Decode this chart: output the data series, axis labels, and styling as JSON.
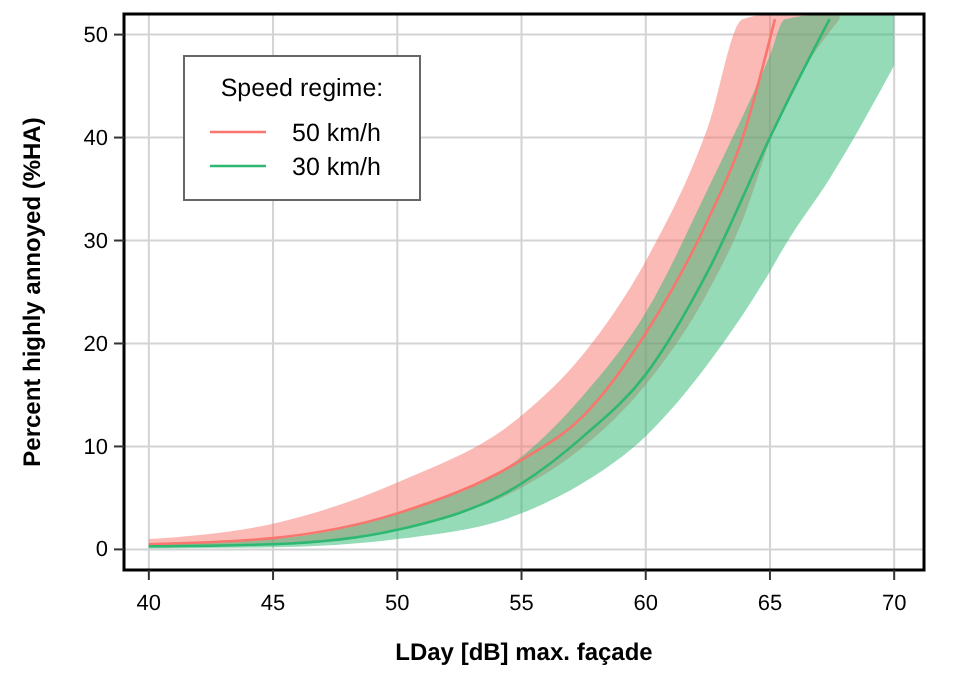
{
  "chart_data": {
    "type": "line",
    "xlabel": "LDay [dB] max. façade",
    "ylabel": "Percent highly annoyed (%HA)",
    "legend_title": "Speed regime:",
    "legend": "top left",
    "grid": true,
    "xlim": [
      39,
      71.2
    ],
    "ylim": [
      -2,
      52
    ],
    "xticks": [
      40,
      45,
      50,
      55,
      60,
      65,
      70
    ],
    "yticks": [
      0,
      10,
      20,
      30,
      40,
      50
    ],
    "series": [
      {
        "name": "50 km/h",
        "color": "#f8766d",
        "x": [
          40,
          45,
          50,
          55,
          57.5,
          60,
          62.5,
          63.9,
          65.2,
          67.8
        ],
        "values": [
          0.5,
          1.1,
          3.5,
          8.7,
          13,
          21,
          32,
          40,
          51.5,
          null
        ],
        "upper": [
          1,
          2.5,
          6.5,
          13,
          19,
          28,
          41,
          51.5,
          52,
          52
        ],
        "lower": [
          0.2,
          0.5,
          2,
          6,
          10,
          16,
          25,
          32,
          41,
          51.5
        ]
      },
      {
        "name": "30 km/h",
        "color": "#2eb872",
        "x": [
          40,
          45,
          50,
          55,
          57.5,
          60,
          62.5,
          65,
          65.6,
          67.4,
          70
        ],
        "values": [
          0.3,
          0.5,
          1.9,
          6.4,
          11,
          17,
          27,
          40,
          43,
          51.5,
          null
        ],
        "upper": [
          0.5,
          1,
          3.5,
          9,
          15,
          23,
          35,
          48,
          51.5,
          52,
          52
        ],
        "lower": [
          0.1,
          0.2,
          1,
          3.5,
          6.5,
          11,
          18,
          27,
          29.5,
          36,
          47
        ]
      }
    ]
  }
}
